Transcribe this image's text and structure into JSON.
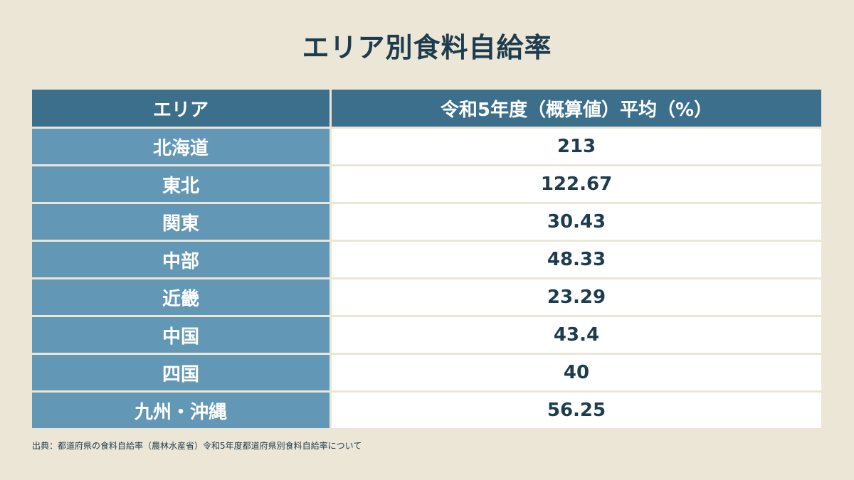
{
  "chart_data": {
    "type": "table",
    "title": "エリア別食料自給率",
    "columns": [
      "エリア",
      "令和5年度（概算値）平均（%）"
    ],
    "rows": [
      {
        "area": "北海道",
        "value": "213"
      },
      {
        "area": "東北",
        "value": "122.67"
      },
      {
        "area": "関東",
        "value": "30.43"
      },
      {
        "area": "中部",
        "value": "48.33"
      },
      {
        "area": "近畿",
        "value": "23.29"
      },
      {
        "area": "中国",
        "value": "43.4"
      },
      {
        "area": "四国",
        "value": "40"
      },
      {
        "area": "九州・沖縄",
        "value": "56.25"
      }
    ],
    "source": "出典：都道府県の食料自給率（農林水産省）令和5年度都道府県別食料自給率について"
  },
  "colors": {
    "background": "#ece6d6",
    "header": "#3b6f8c",
    "area_column": "#6298b5",
    "value_column": "#ffffff",
    "text_dark": "#1d3c4e"
  }
}
